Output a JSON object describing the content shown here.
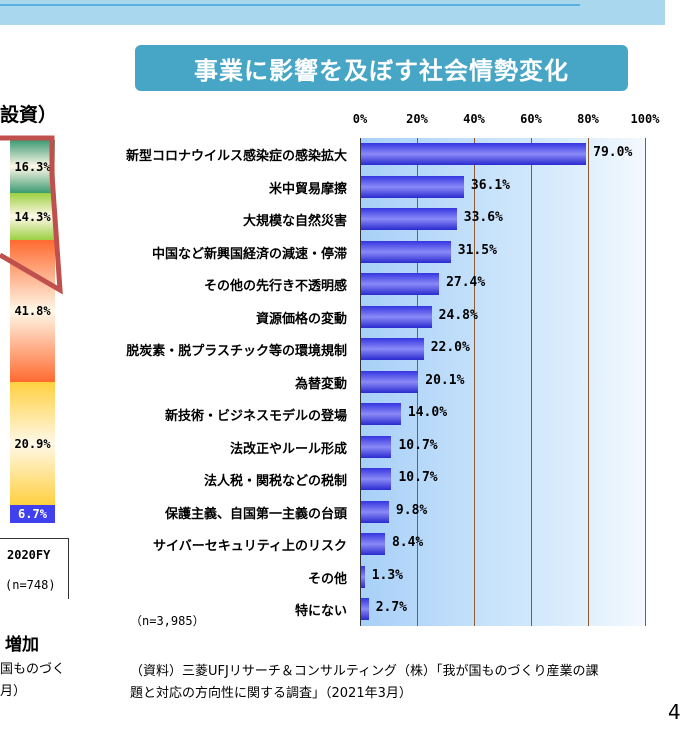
{
  "title": "事業に影響を及ぼす社会情勢変化",
  "left_panel": {
    "heading_fragment": "設資）",
    "year": "2020FY",
    "n": "(n=748)",
    "caption": "増加",
    "source_line1": "国ものづく",
    "source_line2": "月）",
    "segments": [
      {
        "value": "16.3%",
        "color": "#3c9a72"
      },
      {
        "value": "14.3%",
        "color": "#9cd040"
      },
      {
        "value": "41.8%",
        "color": "#ff6a30"
      },
      {
        "value": "20.9%",
        "color": "#ffd040"
      },
      {
        "value": "6.7%",
        "color": "#4040ee"
      }
    ]
  },
  "chart_data": {
    "type": "bar",
    "orientation": "horizontal",
    "categories": [
      "新型コロナウイルス感染症の感染拡大",
      "米中貿易摩擦",
      "大規模な自然災害",
      "中国など新興国経済の減速・停滞",
      "その他の先行き不透明感",
      "資源価格の変動",
      "脱炭素・脱プラスチック等の環境規制",
      "為替変動",
      "新技術・ビジネスモデルの登場",
      "法改正やルール形成",
      "法人税・関税などの税制",
      "保護主義、自国第一主義の台頭",
      "サイバーセキュリティ上のリスク",
      "その他",
      "特にない"
    ],
    "values": [
      79.0,
      36.1,
      33.6,
      31.5,
      27.4,
      24.8,
      22.0,
      20.1,
      14.0,
      10.7,
      10.7,
      9.8,
      8.4,
      1.3,
      2.7
    ],
    "value_labels": [
      "79.0%",
      "36.1%",
      "33.6%",
      "31.5%",
      "27.4%",
      "24.8%",
      "22.0%",
      "20.1%",
      "14.0%",
      "10.7%",
      "10.7%",
      "9.8%",
      "8.4%",
      "1.3%",
      "2.7%"
    ],
    "xlim": [
      0,
      100
    ],
    "xticks": [
      "0%",
      "20%",
      "40%",
      "60%",
      "80%",
      "100%"
    ],
    "grid": true,
    "bar_color": "#3a3ae8",
    "n_label": "（n=3,985）"
  },
  "source": {
    "line1": "（資料）三菱UFJリサーチ＆コンサルティング（株）「我が国ものづくり産業の課",
    "line2": "題と対応の方向性に関する調査」（2021年3月）"
  },
  "page_number": "4"
}
